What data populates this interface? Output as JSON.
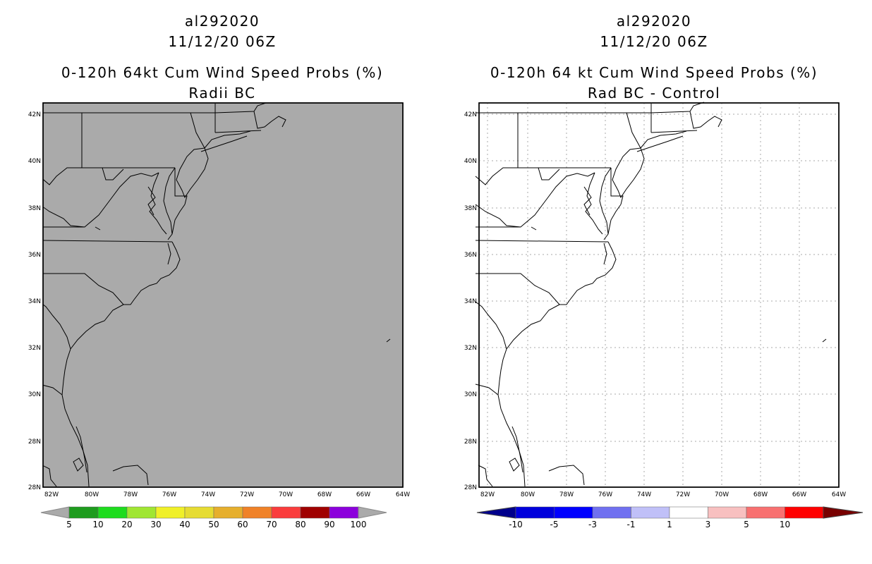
{
  "panels": [
    {
      "storm_id": "al292020",
      "datetime": "11/12/20 06Z",
      "product": "0-120h 64kt Cum Wind Speed Probs (%)",
      "subtitle": "Radii BC",
      "map_background": "#aaaaaa",
      "gridlines": false,
      "colorbar": {
        "colors": [
          "#1e9c1e",
          "#1edc1e",
          "#a0e632",
          "#f0f028",
          "#e6dc32",
          "#e6af2d",
          "#f08228",
          "#fa3c3c",
          "#a00000",
          "#8c00dc"
        ],
        "labels": [
          "5",
          "10",
          "20",
          "30",
          "40",
          "50",
          "60",
          "70",
          "80",
          "90",
          "100"
        ],
        "end_color": "#aaaaaa"
      }
    },
    {
      "storm_id": "al292020",
      "datetime": "11/12/20 06Z",
      "product": "0-120h 64 kt Cum Wind Speed Probs (%)",
      "subtitle": "Rad BC - Control",
      "map_background": "#ffffff",
      "gridlines": true,
      "colorbar": {
        "colors": [
          "#0000dc",
          "#0000ff",
          "#7070f0",
          "#c0c0f8",
          "#ffffff",
          "#f8c0c0",
          "#f87070",
          "#ff0000"
        ],
        "labels": [
          "-10",
          "-5",
          "-3",
          "-1",
          "1",
          "3",
          "5",
          "10"
        ],
        "end_left": "#00008c",
        "end_right": "#780000"
      }
    }
  ],
  "axes": {
    "lat_labels": [
      "42N",
      "40N",
      "38N",
      "36N",
      "34N",
      "32N",
      "30N",
      "28N",
      "28N"
    ],
    "lon_labels": [
      "82W",
      "80W",
      "78W",
      "76W",
      "74W",
      "72W",
      "70W",
      "68W",
      "66W",
      "64W"
    ]
  }
}
